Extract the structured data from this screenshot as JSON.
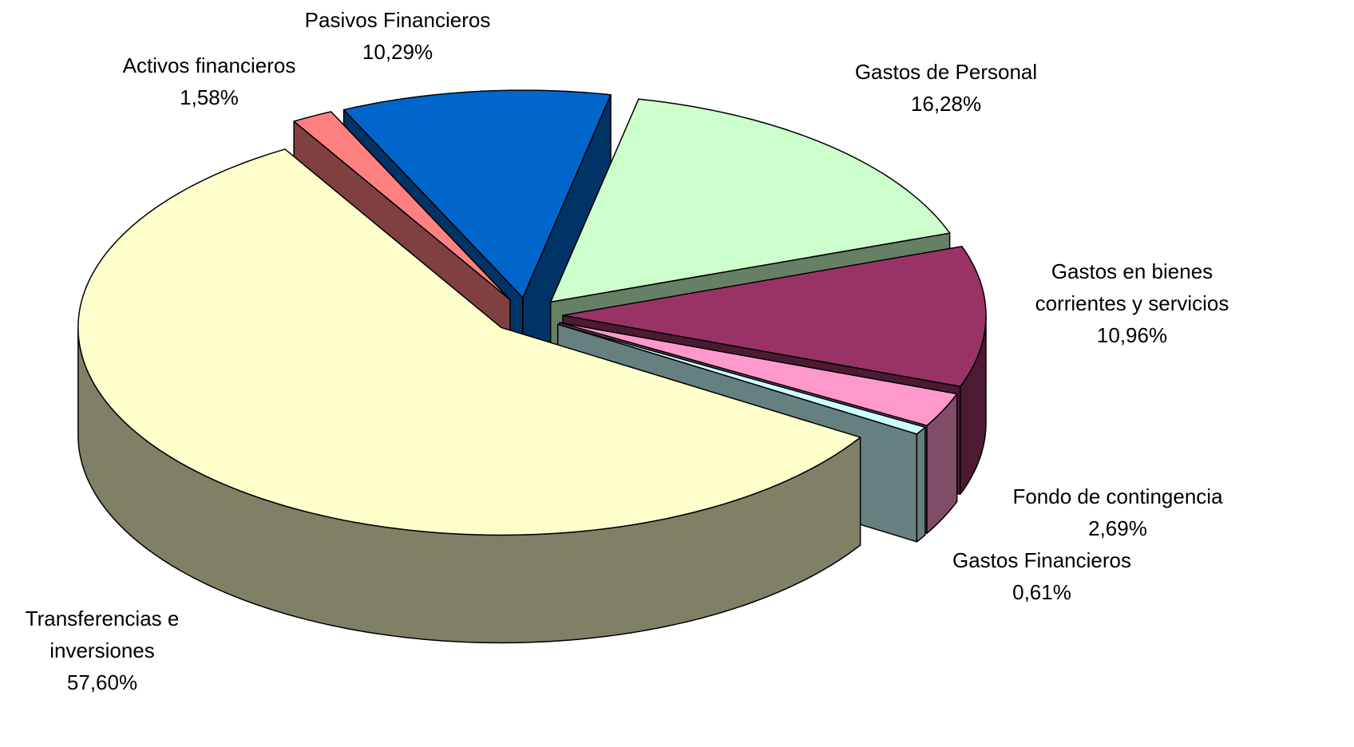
{
  "chart_data": {
    "type": "pie",
    "categories": [
      "Gastos de Personal",
      "Gastos en bienes corrientes y servicios",
      "Fondo de contingencia",
      "Gastos Financieros",
      "Transferencias e inversiones",
      "Activos financieros",
      "Pasivos Financieros"
    ],
    "values": [
      16.28,
      10.96,
      2.69,
      0.61,
      57.6,
      1.58,
      10.29
    ],
    "value_labels": [
      "16,28%",
      "10,96%",
      "2,69%",
      "0,61%",
      "57,60%",
      "1,58%",
      "10,29%"
    ],
    "colors": [
      "#ccffcc",
      "#993366",
      "#ff99cc",
      "#ccffff",
      "#ffffcc",
      "#ff8080",
      "#0066cc"
    ]
  }
}
